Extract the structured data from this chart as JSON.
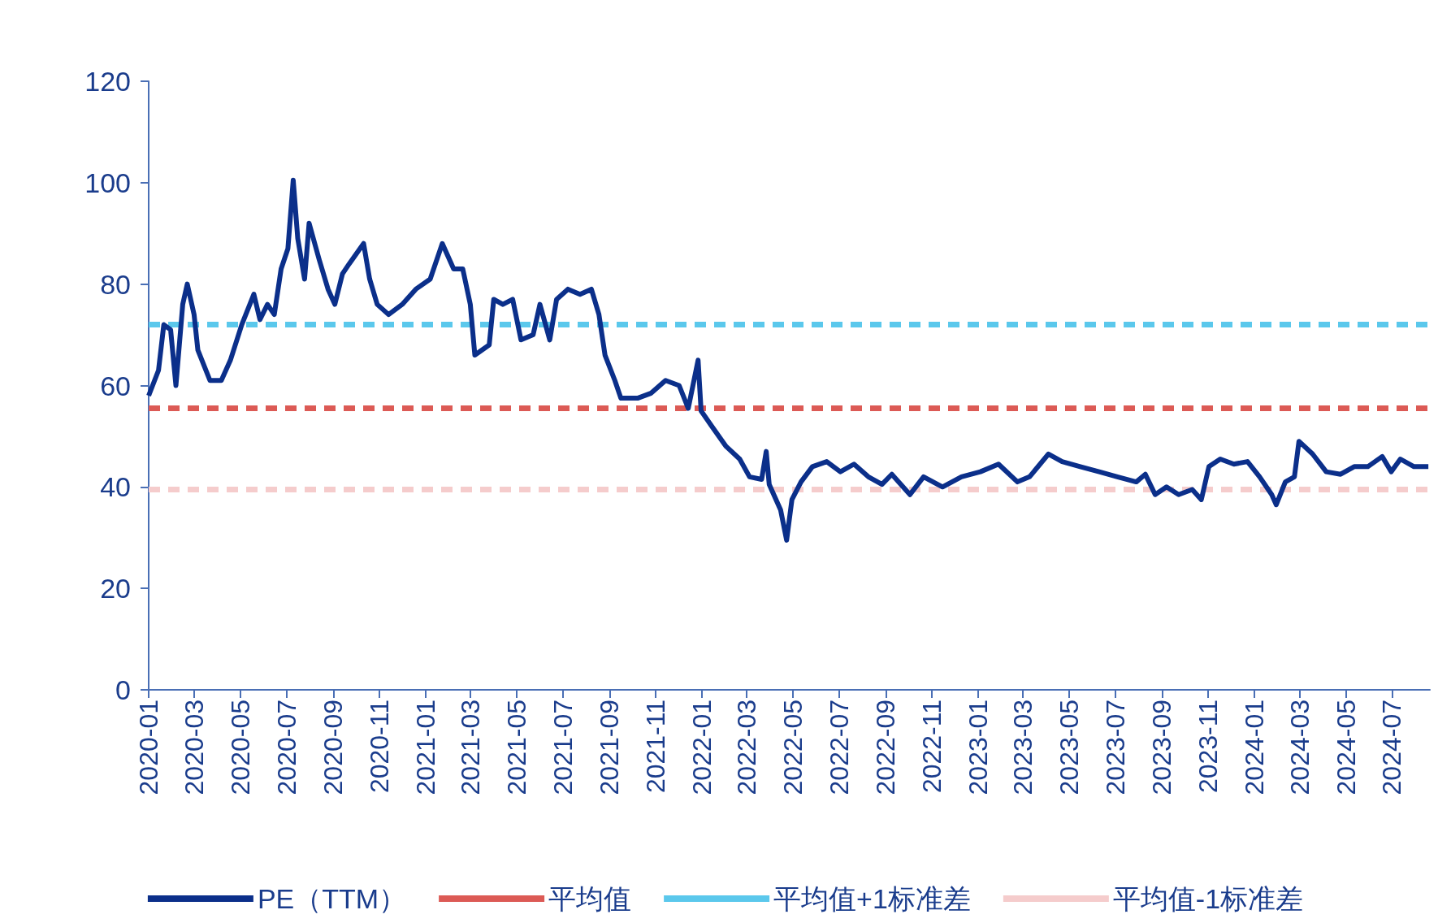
{
  "chart_data": {
    "type": "line",
    "legend": "bottom",
    "grid": false,
    "marker": "none",
    "xlim": [
      "2020-01-01",
      "2024-08-20"
    ],
    "ylim": [
      0,
      120
    ],
    "yticks": [
      0,
      20,
      40,
      60,
      80,
      100,
      120
    ],
    "xticks": [
      "2020-01",
      "2020-03",
      "2020-05",
      "2020-07",
      "2020-09",
      "2020-11",
      "2021-01",
      "2021-03",
      "2021-05",
      "2021-07",
      "2021-09",
      "2021-11",
      "2022-01",
      "2022-03",
      "2022-05",
      "2022-07",
      "2022-09",
      "2022-11",
      "2023-01",
      "2023-03",
      "2023-05",
      "2023-07",
      "2023-09",
      "2023-11",
      "2024-01",
      "2024-03",
      "2024-05",
      "2024-07"
    ],
    "series": [
      {
        "name": "PE（TTM）",
        "color": "#0b2f8a",
        "line_style": "solid",
        "x": [
          "2020-01-01",
          "2020-01-14",
          "2020-01-21",
          "2020-01-30",
          "2020-02-06",
          "2020-02-15",
          "2020-02-21",
          "2020-03-01",
          "2020-03-06",
          "2020-03-22",
          "2020-04-06",
          "2020-04-18",
          "2020-05-03",
          "2020-05-19",
          "2020-05-27",
          "2020-06-06",
          "2020-06-15",
          "2020-06-24",
          "2020-07-03",
          "2020-07-10",
          "2020-07-16",
          "2020-07-25",
          "2020-07-31",
          "2020-08-13",
          "2020-08-25",
          "2020-09-03",
          "2020-09-13",
          "2020-09-22",
          "2020-10-11",
          "2020-10-19",
          "2020-10-29",
          "2020-11-13",
          "2020-12-01",
          "2020-12-19",
          "2021-01-07",
          "2021-01-23",
          "2021-02-07",
          "2021-02-19",
          "2021-03-01",
          "2021-03-07",
          "2021-03-26",
          "2021-04-01",
          "2021-04-13",
          "2021-04-26",
          "2021-05-07",
          "2021-05-23",
          "2021-06-01",
          "2021-06-14",
          "2021-06-23",
          "2021-07-08",
          "2021-07-24",
          "2021-08-08",
          "2021-08-18",
          "2021-08-26",
          "2021-09-08",
          "2021-09-16",
          "2021-10-08",
          "2021-10-26",
          "2021-11-14",
          "2021-12-02",
          "2021-12-14",
          "2021-12-27",
          "2021-12-31",
          "2022-01-14",
          "2022-02-02",
          "2022-02-20",
          "2022-03-05",
          "2022-03-21",
          "2022-03-27",
          "2022-03-31",
          "2022-04-15",
          "2022-04-23",
          "2022-04-30",
          "2022-05-12",
          "2022-05-27",
          "2022-06-15",
          "2022-07-03",
          "2022-07-21",
          "2022-08-09",
          "2022-08-27",
          "2022-09-09",
          "2022-10-03",
          "2022-10-21",
          "2022-11-15",
          "2022-12-10",
          "2023-01-04",
          "2023-01-28",
          "2023-02-22",
          "2023-03-10",
          "2023-04-04",
          "2023-04-22",
          "2023-05-16",
          "2023-06-10",
          "2023-07-04",
          "2023-07-29",
          "2023-08-10",
          "2023-08-23",
          "2023-09-07",
          "2023-09-23",
          "2023-10-11",
          "2023-10-23",
          "2023-11-02",
          "2023-11-17",
          "2023-12-05",
          "2023-12-23",
          "2024-01-08",
          "2024-01-24",
          "2024-01-30",
          "2024-02-11",
          "2024-02-23",
          "2024-02-29",
          "2024-03-18",
          "2024-04-05",
          "2024-04-24",
          "2024-05-12",
          "2024-05-30",
          "2024-06-18",
          "2024-06-30",
          "2024-07-12",
          "2024-07-30",
          "2024-08-18"
        ],
        "values": [
          58,
          63,
          72,
          71,
          60,
          76,
          80,
          74,
          67,
          61,
          61,
          65,
          72,
          78,
          73,
          76,
          74,
          83,
          87,
          100.5,
          89,
          81,
          92,
          85,
          79,
          76,
          82,
          84,
          88,
          81,
          76,
          74,
          76,
          79,
          81,
          88,
          83,
          83,
          76,
          66,
          68,
          77,
          76,
          77,
          69,
          70,
          76,
          69,
          77,
          79,
          78,
          79,
          74,
          66,
          61,
          57.5,
          57.5,
          58.5,
          61,
          60,
          55.5,
          65,
          55,
          52,
          48,
          45.5,
          42,
          41.5,
          47,
          40.5,
          35.5,
          29.5,
          37.5,
          41,
          44,
          45,
          43,
          44.5,
          42,
          40.5,
          42.5,
          38.5,
          42,
          40,
          42,
          43,
          44.5,
          41,
          42,
          46.5,
          45,
          44,
          43,
          42,
          41,
          42.5,
          38.5,
          40,
          38.5,
          39.5,
          37.5,
          44,
          45.5,
          44.5,
          45,
          42,
          38.5,
          36.5,
          41,
          42,
          49,
          46.5,
          43,
          42.5,
          44,
          44,
          46,
          43,
          45.5,
          44,
          44
        ]
      },
      {
        "name": "平均值",
        "color": "#dc5a55",
        "line_style": "dashed",
        "x": [
          "2020-01-01",
          "2024-08-20"
        ],
        "values": [
          55.5,
          55.5
        ]
      },
      {
        "name": "平均值+1标准差",
        "color": "#5bc8ec",
        "line_style": "dashed",
        "x": [
          "2020-01-01",
          "2024-08-20"
        ],
        "values": [
          72,
          72
        ]
      },
      {
        "name": "平均值-1标准差",
        "color": "#f5cccc",
        "line_style": "dashed",
        "x": [
          "2020-01-01",
          "2024-08-20"
        ],
        "values": [
          39.5,
          39.5
        ]
      }
    ]
  }
}
